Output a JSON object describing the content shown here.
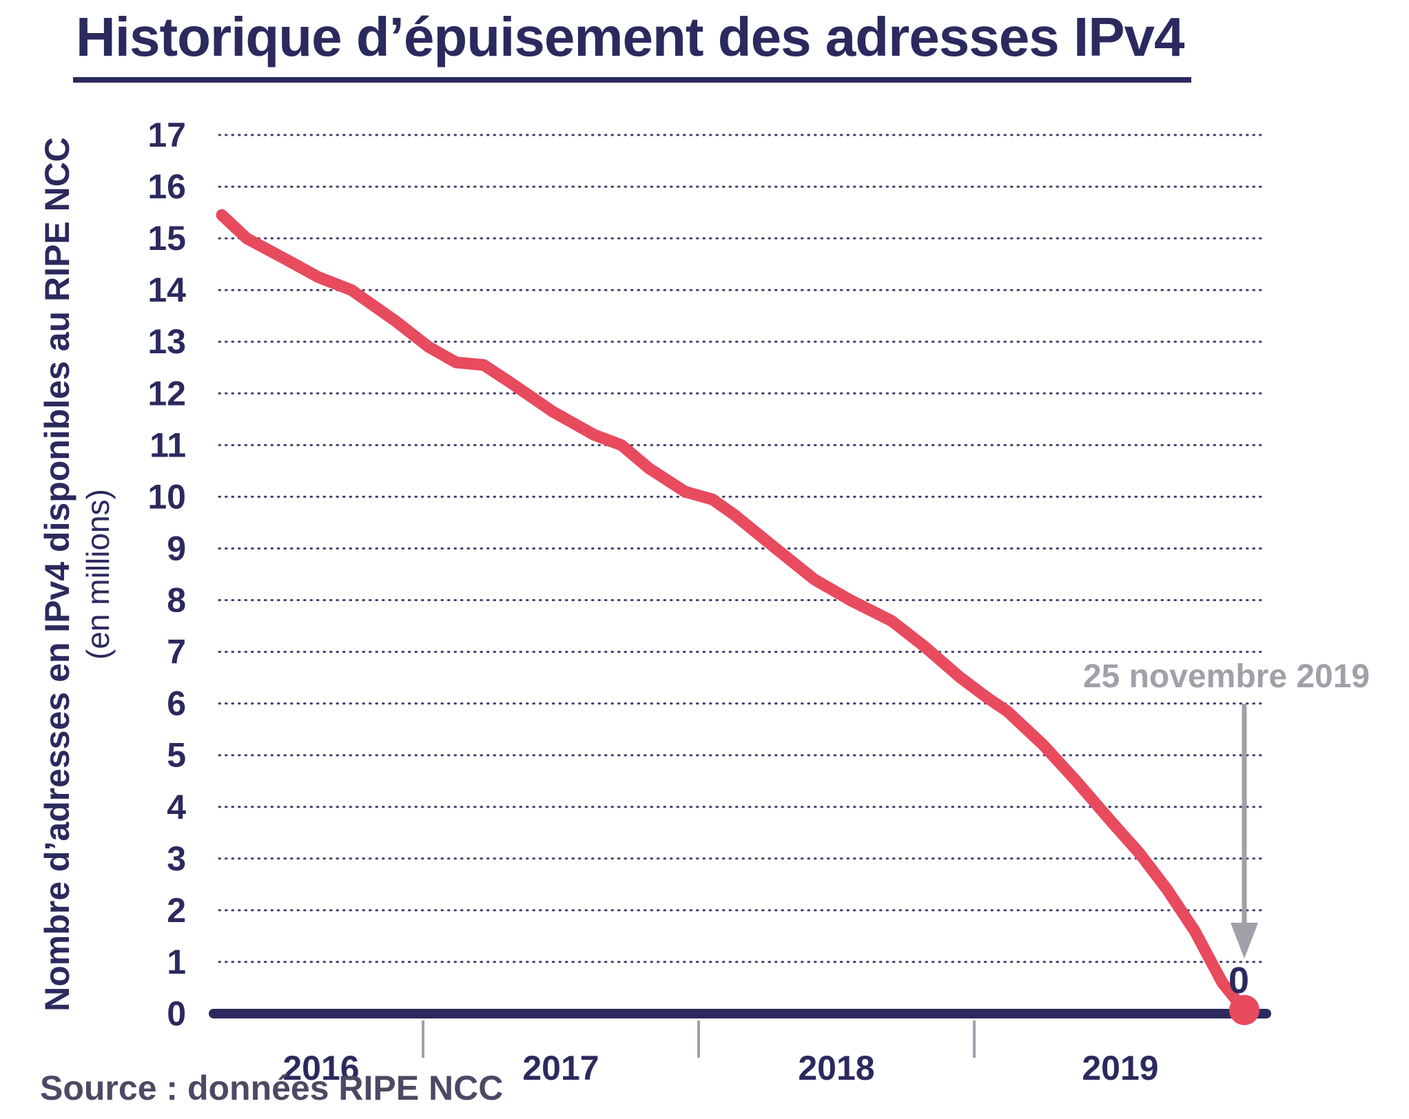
{
  "title": "Historique d’épuisement des adresses IPv4",
  "source": "Source : données RIPE NCC",
  "chart_data": {
    "type": "line",
    "title": "Historique d’épuisement des adresses IPv4",
    "ylabel": "Nombre d’adresses en IPv4 disponibles au RIPE NCC",
    "ylabel_sub": "(en millions)",
    "xlabel": "",
    "y_ticks": [
      0,
      1,
      2,
      3,
      4,
      5,
      6,
      7,
      8,
      9,
      10,
      11,
      12,
      13,
      14,
      15,
      16,
      17
    ],
    "ylim": [
      0,
      17
    ],
    "xlim": [
      2016.26,
      2020.06
    ],
    "x_year_boundaries": [
      2017,
      2018,
      2019
    ],
    "x_tick_labels": [
      "2016",
      "2017",
      "2018",
      "2019"
    ],
    "grid": "horizontal-dotted",
    "legend": "none",
    "series": [
      {
        "name": "Adresses IPv4 disponibles au RIPE NCC (millions)",
        "color": "#e84a5e",
        "points": [
          [
            2016.27,
            15.45
          ],
          [
            2016.36,
            15.0
          ],
          [
            2016.5,
            14.6
          ],
          [
            2016.62,
            14.25
          ],
          [
            2016.74,
            14.0
          ],
          [
            2016.9,
            13.4
          ],
          [
            2017.02,
            12.9
          ],
          [
            2017.12,
            12.6
          ],
          [
            2017.22,
            12.55
          ],
          [
            2017.32,
            12.2
          ],
          [
            2017.47,
            11.65
          ],
          [
            2017.62,
            11.2
          ],
          [
            2017.72,
            11.0
          ],
          [
            2017.82,
            10.55
          ],
          [
            2017.95,
            10.1
          ],
          [
            2018.05,
            9.95
          ],
          [
            2018.13,
            9.65
          ],
          [
            2018.28,
            9.0
          ],
          [
            2018.42,
            8.4
          ],
          [
            2018.55,
            8.0
          ],
          [
            2018.7,
            7.6
          ],
          [
            2018.82,
            7.1
          ],
          [
            2018.95,
            6.5
          ],
          [
            2019.05,
            6.1
          ],
          [
            2019.12,
            5.85
          ],
          [
            2019.25,
            5.2
          ],
          [
            2019.37,
            4.5
          ],
          [
            2019.5,
            3.7
          ],
          [
            2019.6,
            3.1
          ],
          [
            2019.7,
            2.4
          ],
          [
            2019.8,
            1.6
          ],
          [
            2019.9,
            0.6
          ],
          [
            2019.98,
            0.07
          ]
        ]
      }
    ],
    "annotation": {
      "label": "25 novembre 2019",
      "value_label": "0",
      "x": 2019.98,
      "y": 0
    },
    "colors": {
      "navy": "#2b2a5e",
      "red": "#e84a5e",
      "gray": "#a0a0a8",
      "source_text": "#4a4a63"
    }
  }
}
